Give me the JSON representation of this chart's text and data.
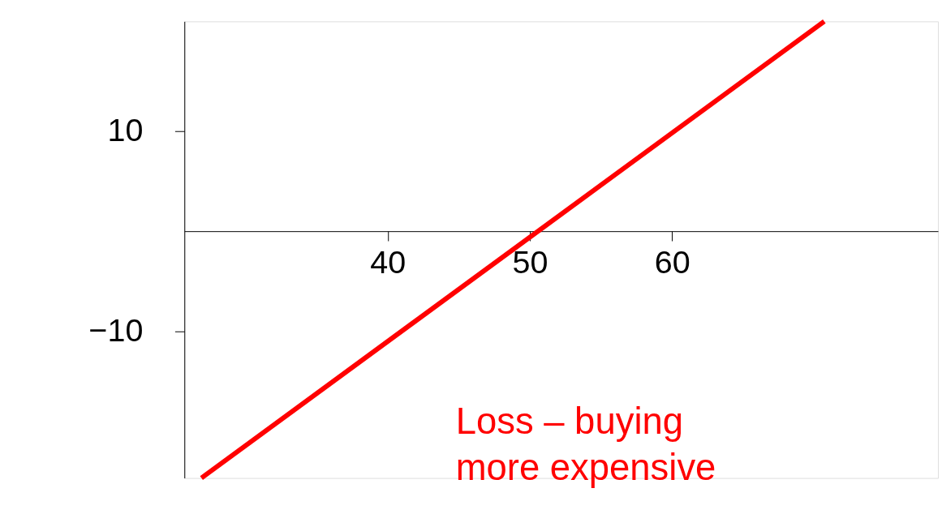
{
  "chart_data": {
    "type": "line",
    "series": [
      {
        "color": "#ff0000",
        "x": [
          26.9,
          70.7
        ],
        "values": [
          -24.7,
          21.0
        ]
      }
    ],
    "xlim": [
      25.7,
      78.7
    ],
    "ylim": [
      -24.7,
      21.0
    ],
    "xticks": [
      40,
      50,
      60
    ],
    "yticks": [
      -10,
      10
    ],
    "grid": false,
    "marker": "none",
    "line_style": "solid",
    "annotations": [
      "Loss – buying more expensive"
    ]
  }
}
